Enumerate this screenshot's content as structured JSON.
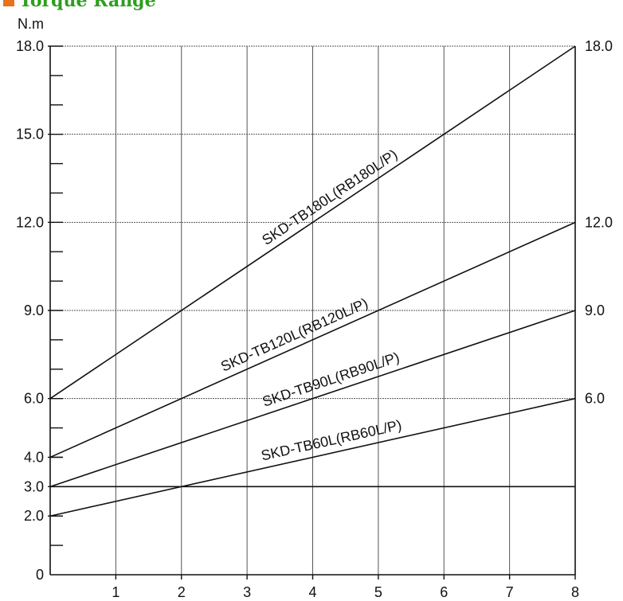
{
  "title": "Torque Range",
  "colors": {
    "title": "#2e9e1f",
    "bullet": "#e8731a",
    "lines": "#111111",
    "grid": "#555555"
  },
  "chart_data": {
    "type": "line",
    "title": "Torque Range",
    "ylabel": "N.m",
    "xlabel": "",
    "xlim": [
      0,
      8
    ],
    "ylim": [
      0,
      18
    ],
    "x_ticks": [
      "1",
      "2",
      "3",
      "4",
      "5",
      "6",
      "7",
      "8"
    ],
    "y_ticks_left": [
      {
        "value": 18,
        "label": "18.0"
      },
      {
        "value": 15,
        "label": "15.0"
      },
      {
        "value": 12,
        "label": "12.0"
      },
      {
        "value": 9,
        "label": "9.0"
      },
      {
        "value": 6,
        "label": "6.0"
      },
      {
        "value": 4,
        "label": "4.0"
      },
      {
        "value": 3,
        "label": "3.0"
      },
      {
        "value": 2,
        "label": "2.0"
      },
      {
        "value": 0,
        "label": "0"
      }
    ],
    "y_ticks_right": [
      {
        "value": 18,
        "label": "18.0"
      },
      {
        "value": 12,
        "label": "12.0"
      },
      {
        "value": 9,
        "label": "9.0"
      },
      {
        "value": 6,
        "label": "6.0"
      }
    ],
    "minor_ticks": [
      1,
      2,
      4,
      5,
      7,
      8,
      10,
      11,
      13,
      14,
      16,
      17
    ],
    "grid": {
      "vertical": true,
      "horizontal": [
        18,
        15,
        12,
        9,
        6
      ]
    },
    "reference_line": 3,
    "series": [
      {
        "name": "SKD-TB180L(RB180L/P)",
        "x": [
          0,
          8
        ],
        "y": [
          6,
          18
        ]
      },
      {
        "name": "SKD-TB120L(RB120L/P)",
        "x": [
          0,
          8
        ],
        "y": [
          4,
          12
        ]
      },
      {
        "name": "SKD-TB90L(RB90L/P)",
        "x": [
          0,
          8
        ],
        "y": [
          3,
          9
        ]
      },
      {
        "name": "SKD-TB60L(RB60L/P)",
        "x": [
          0,
          8
        ],
        "y": [
          2,
          6
        ]
      }
    ]
  }
}
